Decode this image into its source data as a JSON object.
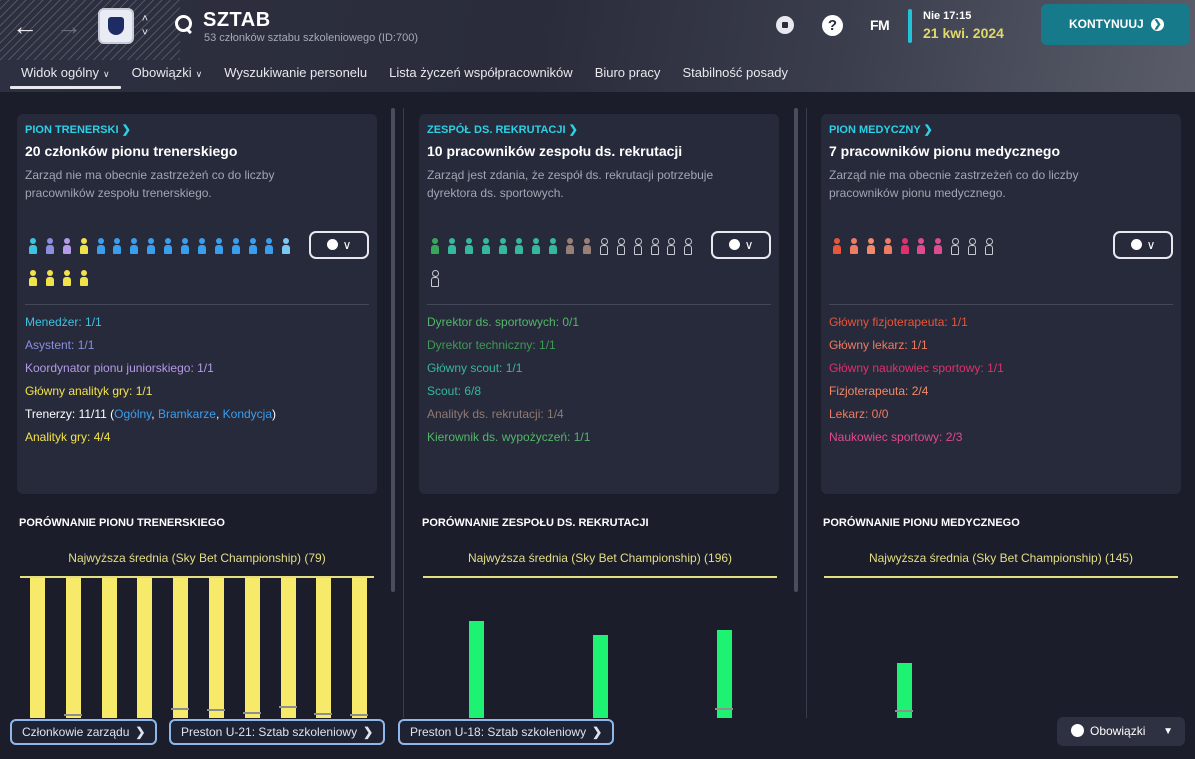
{
  "header": {
    "title": "SZTAB",
    "subtitle": "53 członków sztabu szkoleniowego (ID:700)",
    "time": "Nie 17:15",
    "date": "21 kwi. 2024",
    "fm_label": "FM",
    "help_label": "?",
    "continue_label": "KONTYNUUJ",
    "accent_color": "#22c3d6",
    "button_color": "#177a8a"
  },
  "tabs": [
    {
      "label": "Widok ogólny",
      "active": true,
      "has_menu": true
    },
    {
      "label": "Obowiązki",
      "has_menu": true
    },
    {
      "label": "Wyszukiwanie personelu"
    },
    {
      "label": "Lista życzeń współpracowników"
    },
    {
      "label": "Biuro pracy"
    },
    {
      "label": "Stabilność posady"
    }
  ],
  "panels": [
    {
      "link": "PION TRENERSKI",
      "title": "20 członków pionu trenerskiego",
      "desc": "Zarząd nie ma obecnie zastrzeżeń co do liczby pracowników zespołu trenerskiego.",
      "people_colors": [
        "#3cc3e0",
        "#8a8fe0",
        "#b59ae8",
        "#f2e24a",
        "#3a9ef0",
        "#3a9ef0",
        "#3a9ef0",
        "#3a9ef0",
        "#3a9ef0",
        "#3a9ef0",
        "#3a9ef0",
        "#3a9ef0",
        "#3a9ef0",
        "#3a9ef0",
        "#3a9ef0",
        "#7cc8f5",
        "#f2e24a",
        "#f2e24a",
        "#f2e24a",
        "#f2e24a"
      ],
      "roles": [
        {
          "text": "Menedżer: 1/1",
          "color": "#3cc3e0"
        },
        {
          "text": "Asystent: 1/1",
          "color": "#8a8fe0"
        },
        {
          "text": "Koordynator pionu juniorskiego: 1/1",
          "color": "#b59ae8"
        },
        {
          "text": "Główny analityk gry: 1/1",
          "color": "#f2e24a"
        },
        {
          "text": "Trenerzy: 11/11 (",
          "color": "#ffffff",
          "links": [
            "Ogólny",
            "Bramkarze",
            "Kondycja"
          ],
          "link_color": "#3a9ef0"
        },
        {
          "text": "Analityk gry: 4/4",
          "color": "#f2e24a"
        }
      ],
      "comparison_title": "PORÓWNANIE PIONU TRENERSKIEGO",
      "comparison_label": "Najwyższa średnia (Sky Bet Championship) (79)"
    },
    {
      "link": "ZESPÓŁ DS. REKRUTACJI",
      "title": "10 pracowników zespołu ds. rekrutacji",
      "desc": "Zarząd jest zdania, że zespół ds. rekrutacji potrzebuje dyrektora ds. sportowych.",
      "people_colors": [
        "#36a85a",
        "#35b8a0",
        "#35b8a0",
        "#35b8a0",
        "#35b8a0",
        "#35b8a0",
        "#35b8a0",
        "#35b8a0",
        "#9a7f74",
        "#9a7f74",
        "empty",
        "empty",
        "empty",
        "empty",
        "empty",
        "empty",
        "empty"
      ],
      "roles": [
        {
          "text": "Dyrektor ds. sportowych: 0/1",
          "color": "#52b768"
        },
        {
          "text": "Dyrektor techniczny: 1/1",
          "color": "#3f9a55"
        },
        {
          "text": "Główny scout: 1/1",
          "color": "#35b8a0"
        },
        {
          "text": "Scout: 6/8",
          "color": "#35b8a0"
        },
        {
          "text": "Analityk ds. rekrutacji: 1/4",
          "color": "#8f7a72"
        },
        {
          "text": "Kierownik ds. wypożyczeń: 1/1",
          "color": "#52b768"
        }
      ],
      "comparison_title": "PORÓWNANIE ZESPOŁU DS. REKRUTACJI",
      "comparison_label": "Najwyższa średnia (Sky Bet Championship) (196)"
    },
    {
      "link": "PION MEDYCZNY",
      "title": "7 pracowników pionu medycznego",
      "desc": "Zarząd nie ma obecnie zastrzeżeń co do liczby pracowników pionu medycznego.",
      "people_colors": [
        "#e8553a",
        "#f07a62",
        "#f08a6a",
        "#f07a62",
        "#e0306e",
        "#e04a8e",
        "#e04a8e",
        "empty",
        "empty",
        "empty"
      ],
      "roles": [
        {
          "text": "Główny fizjoterapeuta: 1/1",
          "color": "#e8553a"
        },
        {
          "text": "Główny lekarz: 1/1",
          "color": "#f07a62"
        },
        {
          "text": "Główny naukowiec sportowy: 1/1",
          "color": "#e0306e"
        },
        {
          "text": "Fizjoterapeuta: 2/4",
          "color": "#f08a6a"
        },
        {
          "text": "Lekarz: 0/0",
          "color": "#f07a62"
        },
        {
          "text": "Naukowiec sportowy: 2/3",
          "color": "#e04a8e"
        }
      ],
      "comparison_title": "PORÓWNANIE PIONU MEDYCZNEGO",
      "comparison_label": "Najwyższa średnia (Sky Bet Championship) (145)"
    }
  ],
  "chart_data": [
    {
      "type": "bar",
      "title": "PORÓWNANIE PIONU TRENERSKIEGO",
      "reference_label": "Najwyższa średnia (Sky Bet Championship) (79)",
      "reference_value": 79,
      "ylim": [
        0,
        79
      ],
      "bar_color": "#f7ea6b",
      "values": [
        79,
        79,
        79,
        79,
        79,
        79,
        79,
        79,
        79,
        79
      ],
      "tick_values": [
        null,
        2,
        null,
        null,
        8,
        7,
        4,
        10,
        3,
        2
      ]
    },
    {
      "type": "bar",
      "title": "PORÓWNANIE ZESPOŁU DS. REKRUTACJI",
      "reference_label": "Najwyższa średnia (Sky Bet Championship) (196)",
      "reference_value": 196,
      "ylim": [
        0,
        196
      ],
      "bar_color": "#1ef272",
      "values": [
        66,
        57,
        60
      ],
      "tick_values": [
        null,
        null,
        8
      ]
    },
    {
      "type": "bar",
      "title": "PORÓWNANIE PIONU MEDYCZNEGO",
      "reference_label": "Najwyższa średnia (Sky Bet Championship) (145)",
      "reference_value": 145,
      "ylim": [
        0,
        145
      ],
      "bar_color": "#1ef272",
      "values": [
        28
      ],
      "tick_values": [
        6
      ]
    }
  ],
  "footer": {
    "buttons": [
      "Członkowie zarządu",
      "Preston U-21: Sztab szkoleniowy",
      "Preston U-18: Sztab szkoleniowy"
    ],
    "duties_label": "Obowiązki"
  }
}
